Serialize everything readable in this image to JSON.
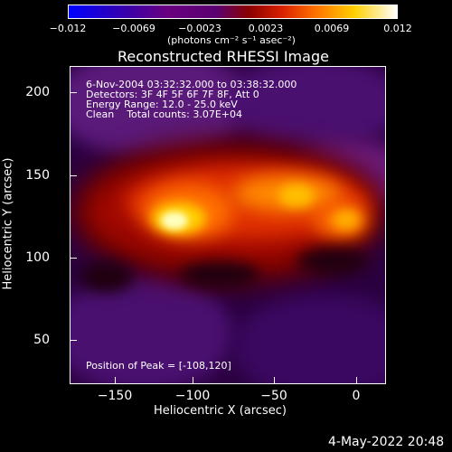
{
  "colorbar": {
    "ticks": [
      "−0.012",
      "−0.0069",
      "−0.0023",
      "0.0023",
      "0.0069",
      "0.012"
    ],
    "unit_label": "(photons cm⁻² s⁻¹ asec⁻²)"
  },
  "title": "Reconstructed RHESSI Image",
  "info": {
    "line1": "6-Nov-2004 03:32:32.000 to 03:38:32.000",
    "line2": "Detectors: 3F 4F 5F 6F 7F 8F, Att 0",
    "line3": "Energy Range: 12.0 - 25.0 keV",
    "line4": "Clean    Total counts: 3.07E+04",
    "peak": "Position of Peak = [-108,120]"
  },
  "axes": {
    "ylabel": "Heliocentric Y (arcsec)",
    "xlabel": "Heliocentric X (arcsec)",
    "yticks": [
      "200",
      "150",
      "100",
      "50"
    ],
    "xticks": [
      "−150",
      "−100",
      "−50",
      "0"
    ]
  },
  "timestamp": "4-May-2022 20:48"
}
